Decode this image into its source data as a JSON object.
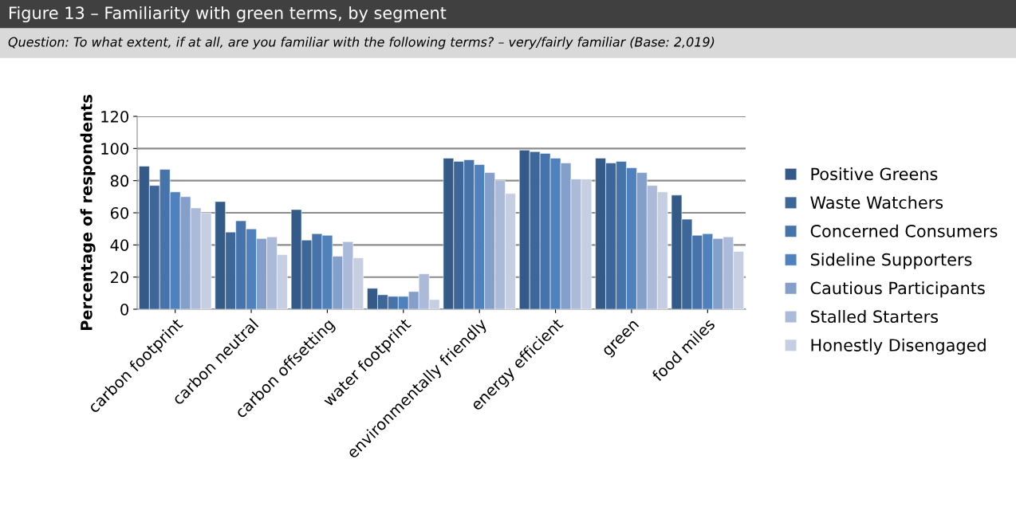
{
  "chart_data": {
    "type": "bar",
    "title": "Figure 13 – Familiarity with green terms, by segment",
    "subtitle": "Question: To what extent, if at all, are you familiar with the following terms? – very/fairly familiar (Base: 2,019)",
    "ylabel": "Percentage of respondents",
    "categories": [
      "carbon footprint",
      "carbon neutral",
      "carbon offsetting",
      "water footprint",
      "environmentally friendly",
      "energy efficient",
      "green",
      "food miles"
    ],
    "series": [
      {
        "name": "Positive Greens",
        "color": "#345a88",
        "values": [
          89,
          67,
          62,
          13,
          94,
          99,
          94,
          71
        ]
      },
      {
        "name": "Waste Watchers",
        "color": "#3e6799",
        "values": [
          77,
          48,
          43,
          9,
          92,
          98,
          91,
          56
        ]
      },
      {
        "name": "Concerned Consumers",
        "color": "#4673aa",
        "values": [
          87,
          55,
          47,
          8,
          93,
          97,
          92,
          46
        ]
      },
      {
        "name": "Sideline Supporters",
        "color": "#4f81bd",
        "values": [
          73,
          50,
          46,
          8,
          90,
          94,
          88,
          47
        ]
      },
      {
        "name": "Cautious Participants",
        "color": "#849fca",
        "values": [
          70,
          44,
          33,
          11,
          85,
          91,
          85,
          44
        ]
      },
      {
        "name": "Stalled Starters",
        "color": "#aabad8",
        "values": [
          63,
          45,
          42,
          22,
          80,
          81,
          77,
          45
        ]
      },
      {
        "name": "Honestly Disengaged",
        "color": "#c5cfe1",
        "values": [
          60,
          34,
          32,
          6,
          72,
          81,
          73,
          36
        ]
      }
    ],
    "ylim": [
      0,
      120
    ],
    "yticks": [
      0,
      20,
      40,
      60,
      80,
      100,
      120
    ],
    "grid": "y",
    "legend": "right"
  }
}
